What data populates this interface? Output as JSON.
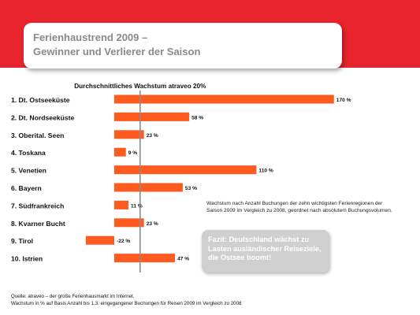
{
  "header": {
    "title_line1": "Ferienhaustrend 2009 –",
    "title_line2": "Gewinner und Verlierer der Saison"
  },
  "colors": {
    "bar": "#ff5a1f",
    "brand_red": "#e8242c",
    "average_line": "#8c8c8c"
  },
  "chart_data": {
    "type": "bar",
    "orientation": "horizontal",
    "categories": [
      "1. Dt. Ostseeküste",
      "2. Dt. Nordseeküste",
      "3. Oberital. Seen",
      "4. Toskana",
      "5. Venetien",
      "6. Bayern",
      "7. Südfrankreich",
      "8. Kvarner Bucht",
      "9. Tirol",
      "10. Istrien"
    ],
    "values": [
      170,
      58,
      23,
      9,
      110,
      53,
      11,
      23,
      -22,
      47
    ],
    "value_labels": [
      "170 %",
      "58 %",
      "23 %",
      "9 %",
      "110 %",
      "53 %",
      "11 %",
      "23 %",
      "-22 %",
      "47 %"
    ],
    "reference_line": {
      "value": 20,
      "label": "Durchschnittliches Wachstum atraveo 20%"
    },
    "xlim": [
      -22,
      170
    ],
    "grid": false,
    "legend": "none"
  },
  "note": "Wachstum nach Anzahl Buchungen der zehn wichtigsten Ferienregionen der Saison 2009 im Vergleich zu 2008, geordnet nach absolutem Buchungsvolumen.",
  "fazit": "Fazit: Deutschland wächst zu Lasten ausländischer Reiseziele, die Ostsee boomt!",
  "source": {
    "line1": "Quelle: atraveo – der große Ferienhausmarkt im Internet.",
    "line2": "Wachstum in % auf Basis Anzahl bis 1.3. eingegangener Buchungen für Reisen 2009 im Vergleich zu 2008"
  }
}
